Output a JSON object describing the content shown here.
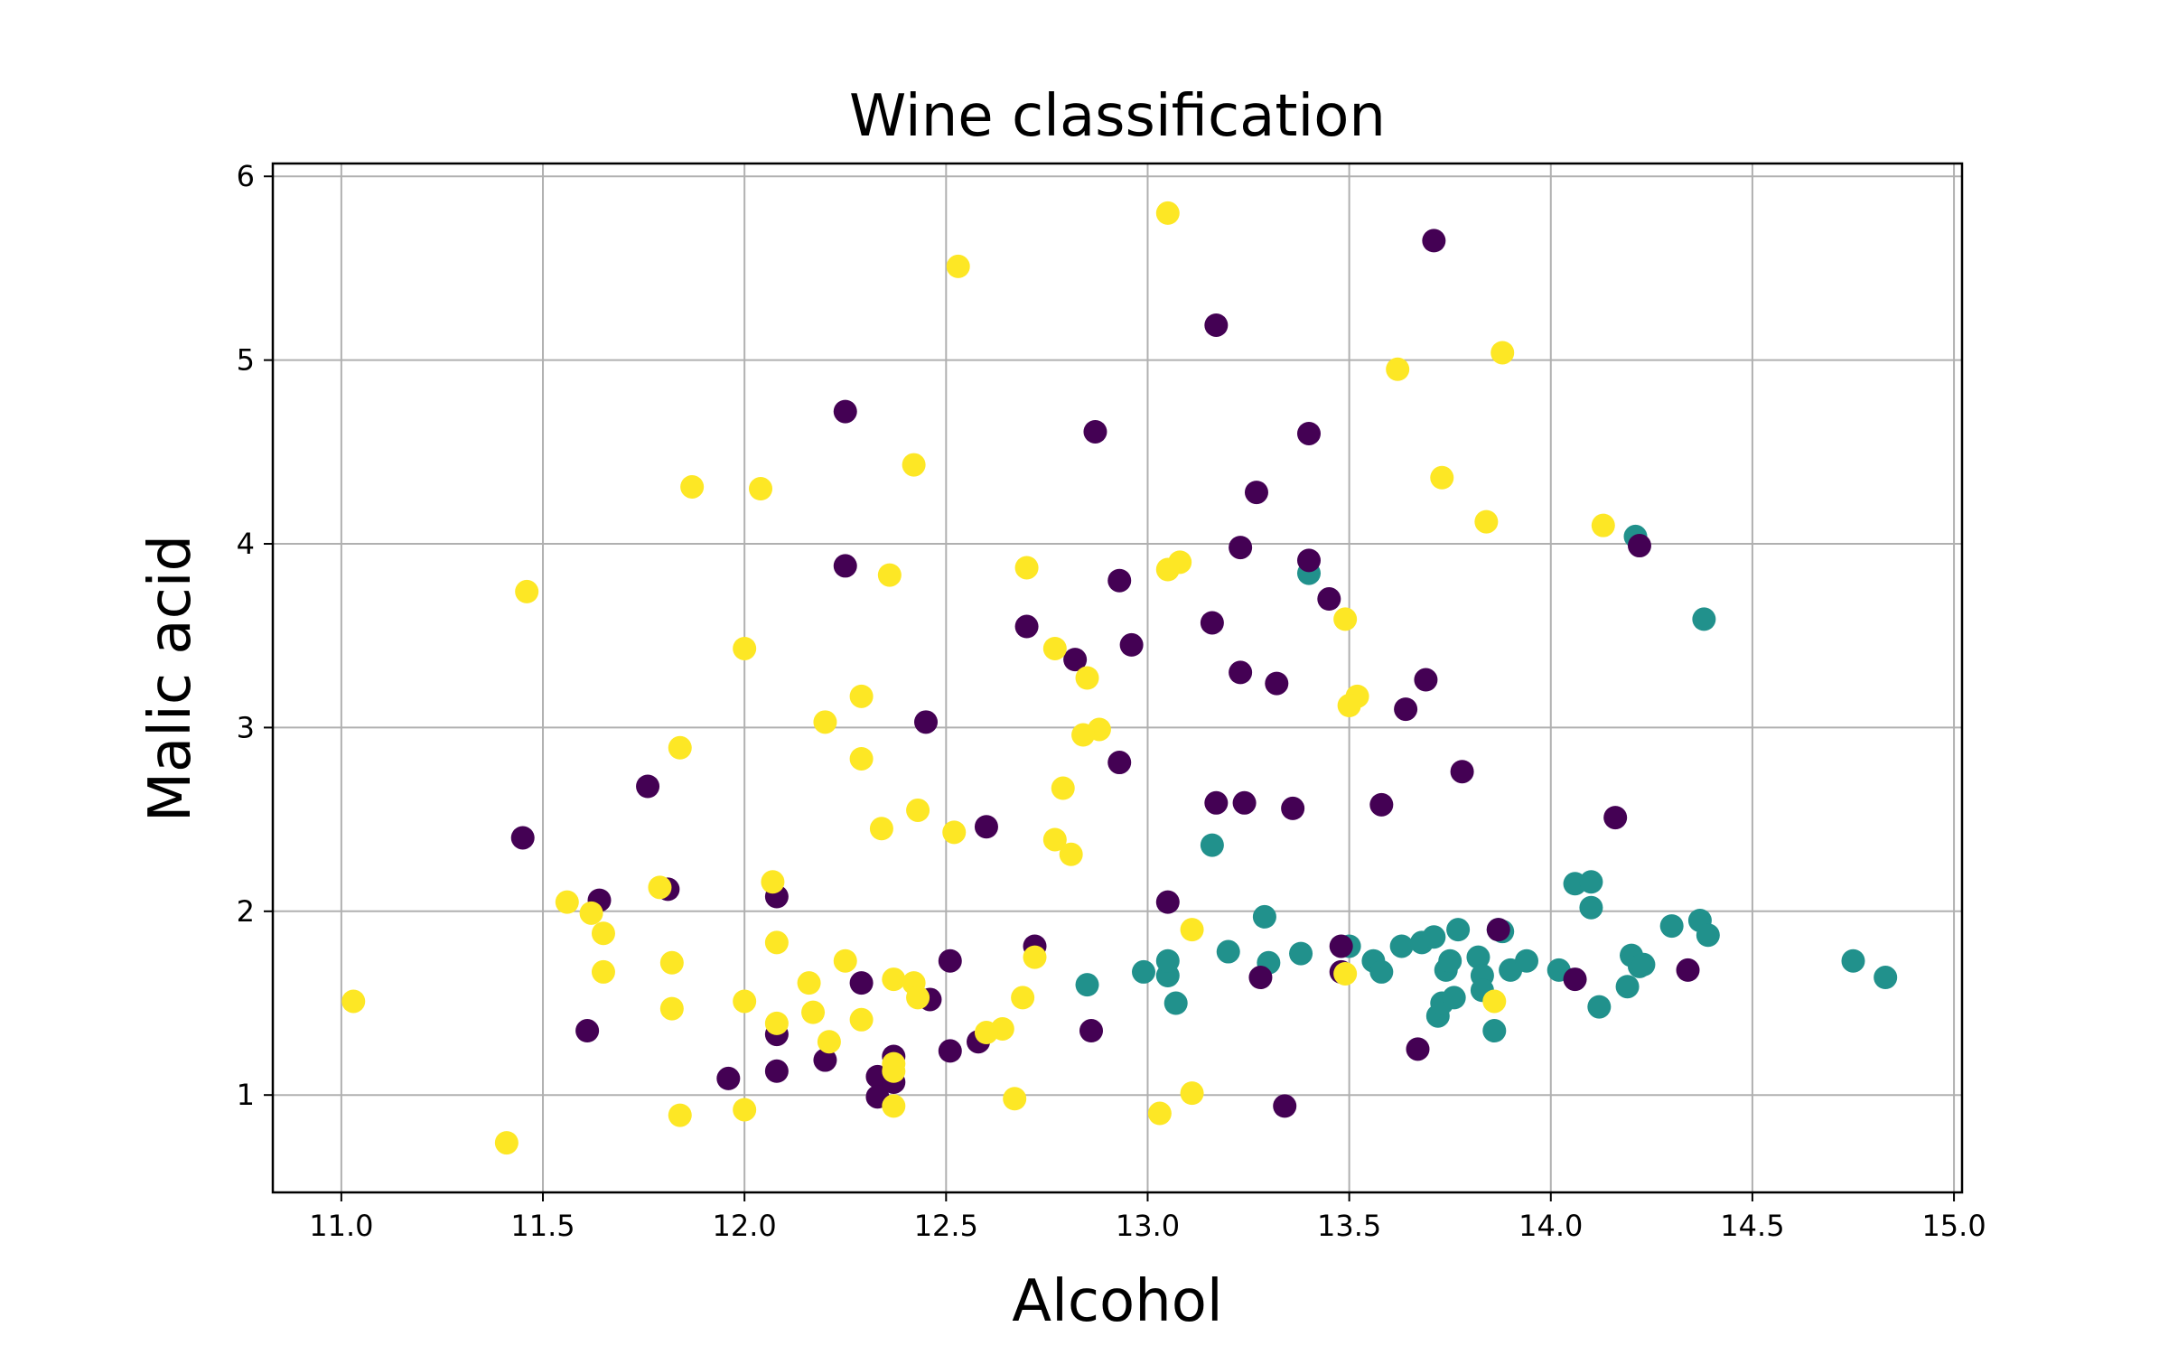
{
  "chart_data": {
    "type": "scatter",
    "title": "Wine classification",
    "xlabel": "Alcohol",
    "ylabel": "Malic acid",
    "xlim": [
      10.83,
      15.02
    ],
    "ylim": [
      0.47,
      6.07
    ],
    "x_ticks": [
      11.0,
      11.5,
      12.0,
      12.5,
      13.0,
      13.5,
      14.0,
      14.5,
      15.0
    ],
    "x_tick_labels": [
      "11.0",
      "11.5",
      "12.0",
      "12.5",
      "13.0",
      "13.5",
      "14.0",
      "14.5",
      "15.0"
    ],
    "y_ticks": [
      1,
      2,
      3,
      4,
      5,
      6
    ],
    "y_tick_labels": [
      "1",
      "2",
      "3",
      "4",
      "5",
      "6"
    ],
    "grid": true,
    "legend": "none",
    "colors": {
      "class_a": "#440154",
      "class_b": "#21918c",
      "class_c": "#fde725"
    },
    "series": [
      {
        "color": "#21918c",
        "points": [
          [
            13.38,
            1.77
          ],
          [
            13.5,
            1.81
          ],
          [
            13.56,
            1.73
          ],
          [
            13.58,
            1.67
          ],
          [
            13.63,
            1.81
          ],
          [
            13.68,
            1.83
          ],
          [
            13.71,
            1.86
          ],
          [
            13.74,
            1.68
          ],
          [
            13.75,
            1.73
          ],
          [
            13.77,
            1.9
          ],
          [
            13.82,
            1.75
          ],
          [
            13.83,
            1.65
          ],
          [
            13.87,
            1.9
          ],
          [
            13.88,
            1.89
          ],
          [
            13.9,
            1.68
          ],
          [
            13.94,
            1.73
          ],
          [
            14.02,
            1.68
          ],
          [
            14.06,
            2.15
          ],
          [
            14.1,
            2.16
          ],
          [
            14.1,
            2.02
          ],
          [
            14.12,
            1.48
          ],
          [
            14.19,
            1.59
          ],
          [
            14.2,
            1.76
          ],
          [
            14.22,
            1.7
          ],
          [
            14.23,
            1.71
          ],
          [
            14.3,
            1.92
          ],
          [
            14.37,
            1.95
          ],
          [
            14.39,
            1.87
          ],
          [
            14.38,
            3.59
          ],
          [
            14.21,
            4.04
          ],
          [
            14.75,
            1.73
          ],
          [
            14.83,
            1.64
          ],
          [
            13.72,
            1.43
          ],
          [
            13.73,
            1.5
          ],
          [
            13.76,
            1.53
          ],
          [
            13.83,
            1.57
          ],
          [
            13.86,
            1.35
          ],
          [
            13.4,
            3.84
          ],
          [
            13.16,
            2.36
          ],
          [
            13.29,
            1.97
          ],
          [
            13.3,
            1.72
          ],
          [
            13.2,
            1.78
          ],
          [
            13.05,
            1.65
          ],
          [
            13.05,
            1.73
          ],
          [
            13.07,
            1.5
          ],
          [
            12.99,
            1.67
          ],
          [
            12.85,
            1.6
          ]
        ]
      },
      {
        "color": "#440154",
        "points": [
          [
            13.71,
            5.65
          ],
          [
            13.17,
            5.19
          ],
          [
            12.25,
            4.72
          ],
          [
            12.87,
            4.61
          ],
          [
            13.4,
            4.6
          ],
          [
            13.27,
            4.28
          ],
          [
            13.23,
            3.98
          ],
          [
            13.4,
            3.91
          ],
          [
            14.22,
            3.99
          ],
          [
            12.25,
            3.88
          ],
          [
            12.93,
            3.8
          ],
          [
            13.45,
            3.7
          ],
          [
            12.7,
            3.55
          ],
          [
            13.16,
            3.57
          ],
          [
            12.96,
            3.45
          ],
          [
            12.82,
            3.37
          ],
          [
            13.23,
            3.3
          ],
          [
            13.32,
            3.24
          ],
          [
            13.69,
            3.26
          ],
          [
            13.64,
            3.1
          ],
          [
            12.45,
            3.03
          ],
          [
            12.93,
            2.81
          ],
          [
            13.78,
            2.76
          ],
          [
            11.76,
            2.68
          ],
          [
            13.17,
            2.59
          ],
          [
            13.24,
            2.59
          ],
          [
            13.36,
            2.56
          ],
          [
            13.58,
            2.58
          ],
          [
            14.16,
            2.51
          ],
          [
            12.6,
            2.46
          ],
          [
            11.45,
            2.4
          ],
          [
            11.81,
            2.12
          ],
          [
            11.64,
            2.06
          ],
          [
            12.08,
            2.08
          ],
          [
            13.05,
            2.05
          ],
          [
            13.87,
            1.9
          ],
          [
            12.72,
            1.81
          ],
          [
            13.48,
            1.81
          ],
          [
            12.51,
            1.73
          ],
          [
            13.48,
            1.67
          ],
          [
            13.28,
            1.64
          ],
          [
            14.06,
            1.63
          ],
          [
            14.34,
            1.68
          ],
          [
            12.29,
            1.61
          ],
          [
            12.46,
            1.52
          ],
          [
            11.61,
            1.35
          ],
          [
            12.08,
            1.33
          ],
          [
            12.86,
            1.35
          ],
          [
            12.51,
            1.24
          ],
          [
            12.58,
            1.29
          ],
          [
            13.67,
            1.25
          ],
          [
            12.37,
            1.21
          ],
          [
            12.2,
            1.19
          ],
          [
            12.08,
            1.13
          ],
          [
            11.96,
            1.09
          ],
          [
            12.33,
            1.1
          ],
          [
            12.37,
            1.07
          ],
          [
            12.33,
            0.99
          ],
          [
            13.34,
            0.94
          ]
        ]
      },
      {
        "color": "#fde725",
        "points": [
          [
            13.05,
            5.8
          ],
          [
            12.53,
            5.51
          ],
          [
            13.88,
            5.04
          ],
          [
            13.62,
            4.95
          ],
          [
            12.42,
            4.43
          ],
          [
            13.73,
            4.36
          ],
          [
            11.87,
            4.31
          ],
          [
            12.04,
            4.3
          ],
          [
            13.84,
            4.12
          ],
          [
            14.13,
            4.1
          ],
          [
            13.08,
            3.9
          ],
          [
            13.05,
            3.86
          ],
          [
            12.7,
            3.87
          ],
          [
            12.36,
            3.83
          ],
          [
            11.46,
            3.74
          ],
          [
            13.49,
            3.59
          ],
          [
            12.0,
            3.43
          ],
          [
            12.77,
            3.43
          ],
          [
            12.85,
            3.27
          ],
          [
            12.29,
            3.17
          ],
          [
            13.52,
            3.17
          ],
          [
            13.5,
            3.12
          ],
          [
            12.2,
            3.03
          ],
          [
            12.88,
            2.99
          ],
          [
            12.84,
            2.96
          ],
          [
            11.84,
            2.89
          ],
          [
            12.29,
            2.83
          ],
          [
            12.79,
            2.67
          ],
          [
            12.43,
            2.55
          ],
          [
            12.34,
            2.45
          ],
          [
            12.52,
            2.43
          ],
          [
            12.77,
            2.39
          ],
          [
            12.81,
            2.31
          ],
          [
            12.07,
            2.16
          ],
          [
            11.79,
            2.13
          ],
          [
            11.56,
            2.05
          ],
          [
            11.62,
            1.99
          ],
          [
            13.11,
            1.9
          ],
          [
            11.65,
            1.88
          ],
          [
            12.08,
            1.83
          ],
          [
            12.72,
            1.75
          ],
          [
            11.82,
            1.72
          ],
          [
            12.25,
            1.73
          ],
          [
            11.65,
            1.67
          ],
          [
            13.49,
            1.66
          ],
          [
            12.37,
            1.63
          ],
          [
            12.42,
            1.61
          ],
          [
            12.16,
            1.61
          ],
          [
            12.43,
            1.53
          ],
          [
            12.69,
            1.53
          ],
          [
            11.03,
            1.51
          ],
          [
            12.0,
            1.51
          ],
          [
            13.86,
            1.51
          ],
          [
            11.82,
            1.47
          ],
          [
            12.17,
            1.45
          ],
          [
            12.29,
            1.41
          ],
          [
            12.08,
            1.39
          ],
          [
            12.64,
            1.36
          ],
          [
            12.6,
            1.34
          ],
          [
            12.21,
            1.29
          ],
          [
            12.37,
            1.17
          ],
          [
            12.37,
            1.13
          ],
          [
            12.67,
            0.98
          ],
          [
            13.11,
            1.01
          ],
          [
            12.37,
            0.94
          ],
          [
            12.0,
            0.92
          ],
          [
            11.84,
            0.89
          ],
          [
            13.03,
            0.9
          ],
          [
            11.41,
            0.74
          ]
        ]
      }
    ]
  }
}
